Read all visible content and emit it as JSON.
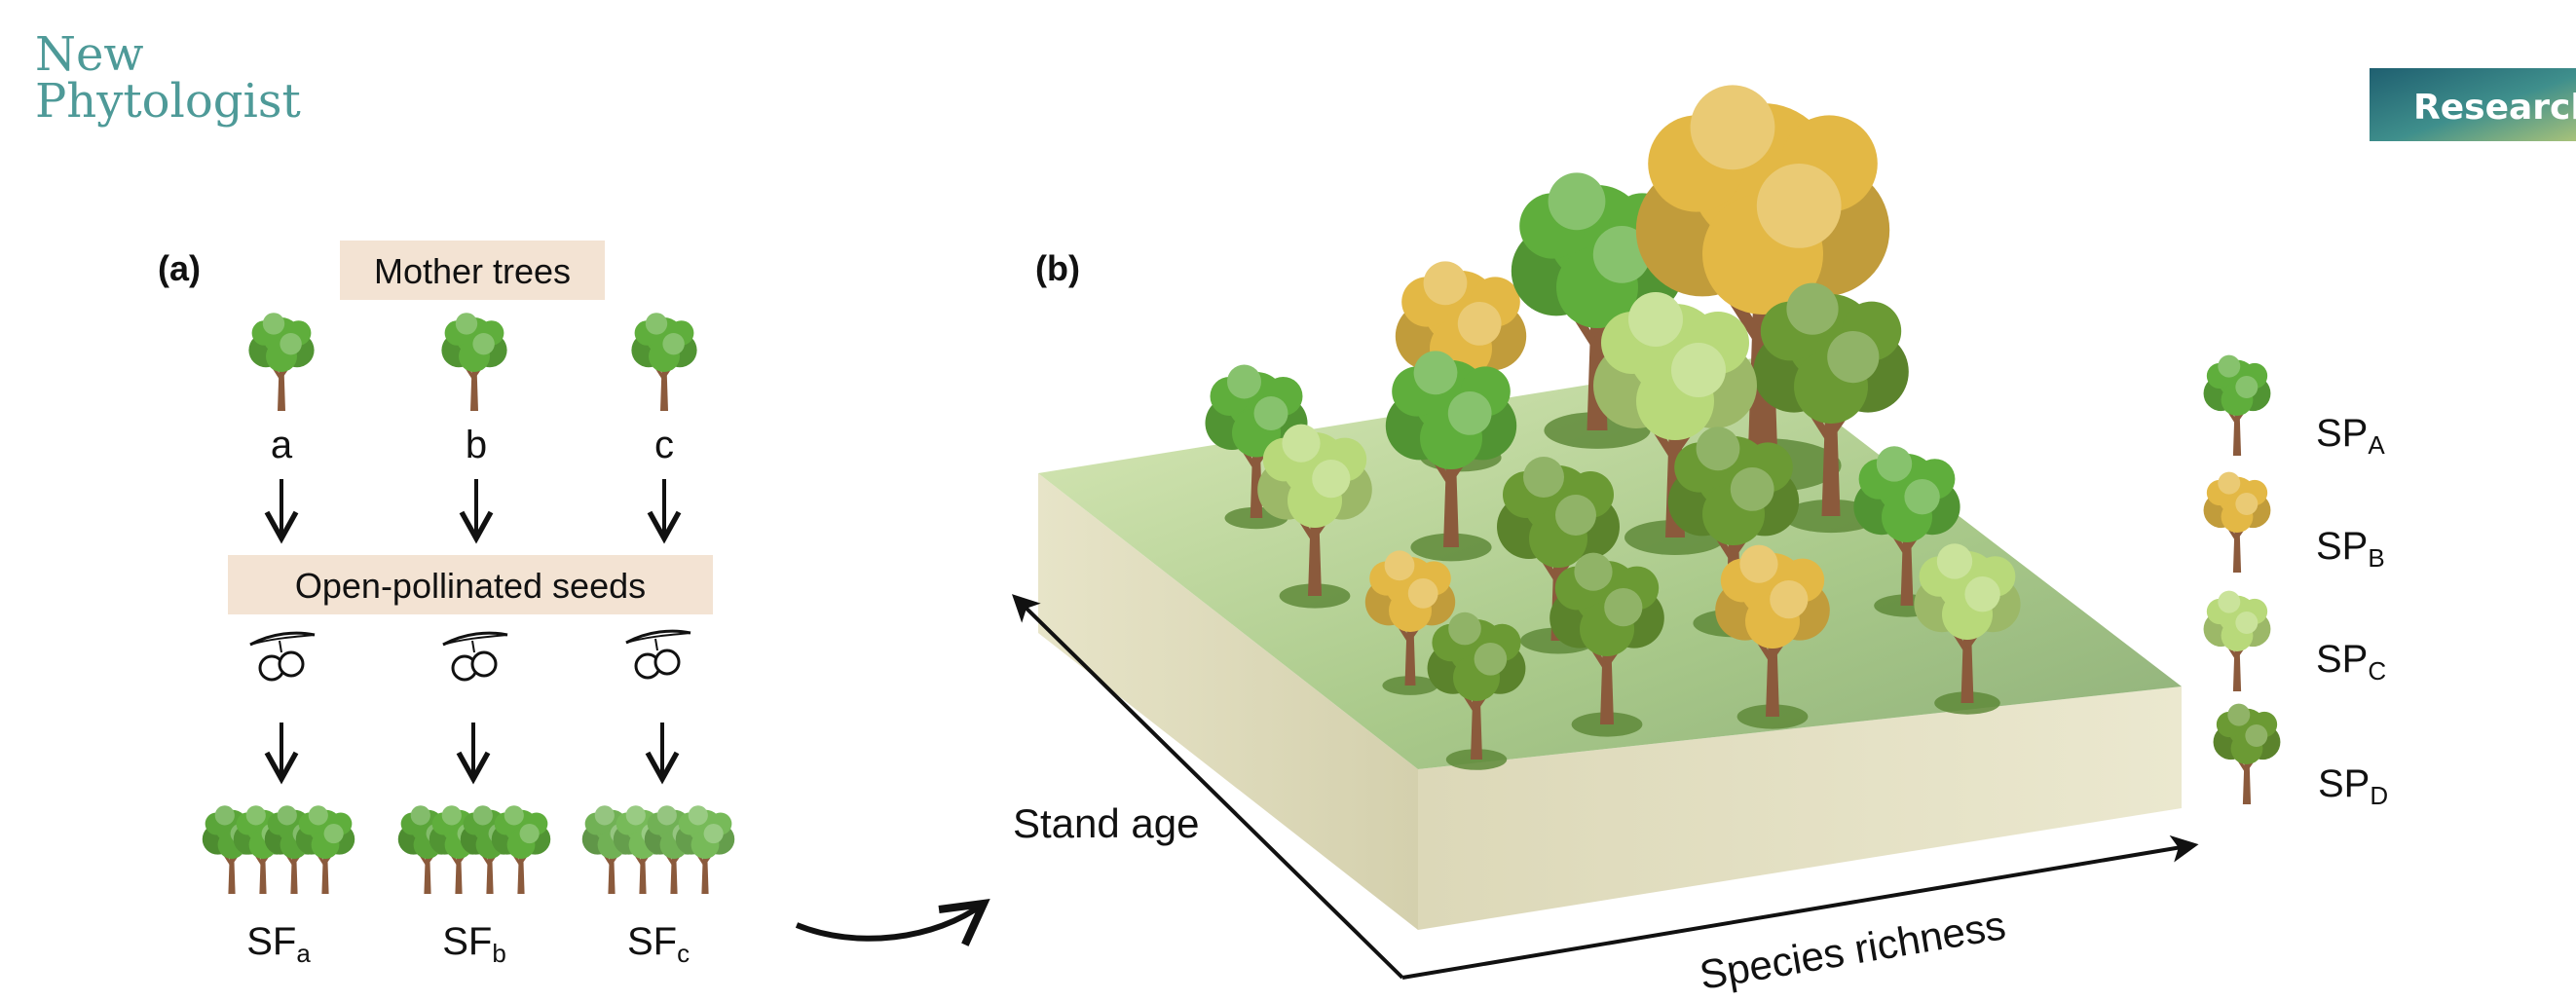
{
  "header": {
    "journal_line1": "New",
    "journal_line2": "Phytologist",
    "section_badge": "Research"
  },
  "panel_a": {
    "label": "(a)",
    "mother_trees_label": "Mother trees",
    "mothers": [
      "a",
      "b",
      "c"
    ],
    "seeds_label": "Open-pollinated seeds",
    "families": [
      {
        "prefix": "SF",
        "sub": "a"
      },
      {
        "prefix": "SF",
        "sub": "b"
      },
      {
        "prefix": "SF",
        "sub": "c"
      }
    ]
  },
  "panel_b": {
    "label": "(b)",
    "axis_age": "Stand age",
    "axis_richness": "Species richness",
    "legend": [
      {
        "prefix": "SP",
        "sub": "A",
        "color": "#5fae3c"
      },
      {
        "prefix": "SP",
        "sub": "B",
        "color": "#e3b845"
      },
      {
        "prefix": "SP",
        "sub": "C",
        "color": "#b8d97a"
      },
      {
        "prefix": "SP",
        "sub": "D",
        "color": "#6b9a34"
      }
    ]
  },
  "colors": {
    "label_box": "#f3e3d3",
    "ground_top": "#c9dfa8",
    "ground_side": "#dedbbd",
    "trunk": "#8b5a3c",
    "journal": "#4e9a98"
  }
}
